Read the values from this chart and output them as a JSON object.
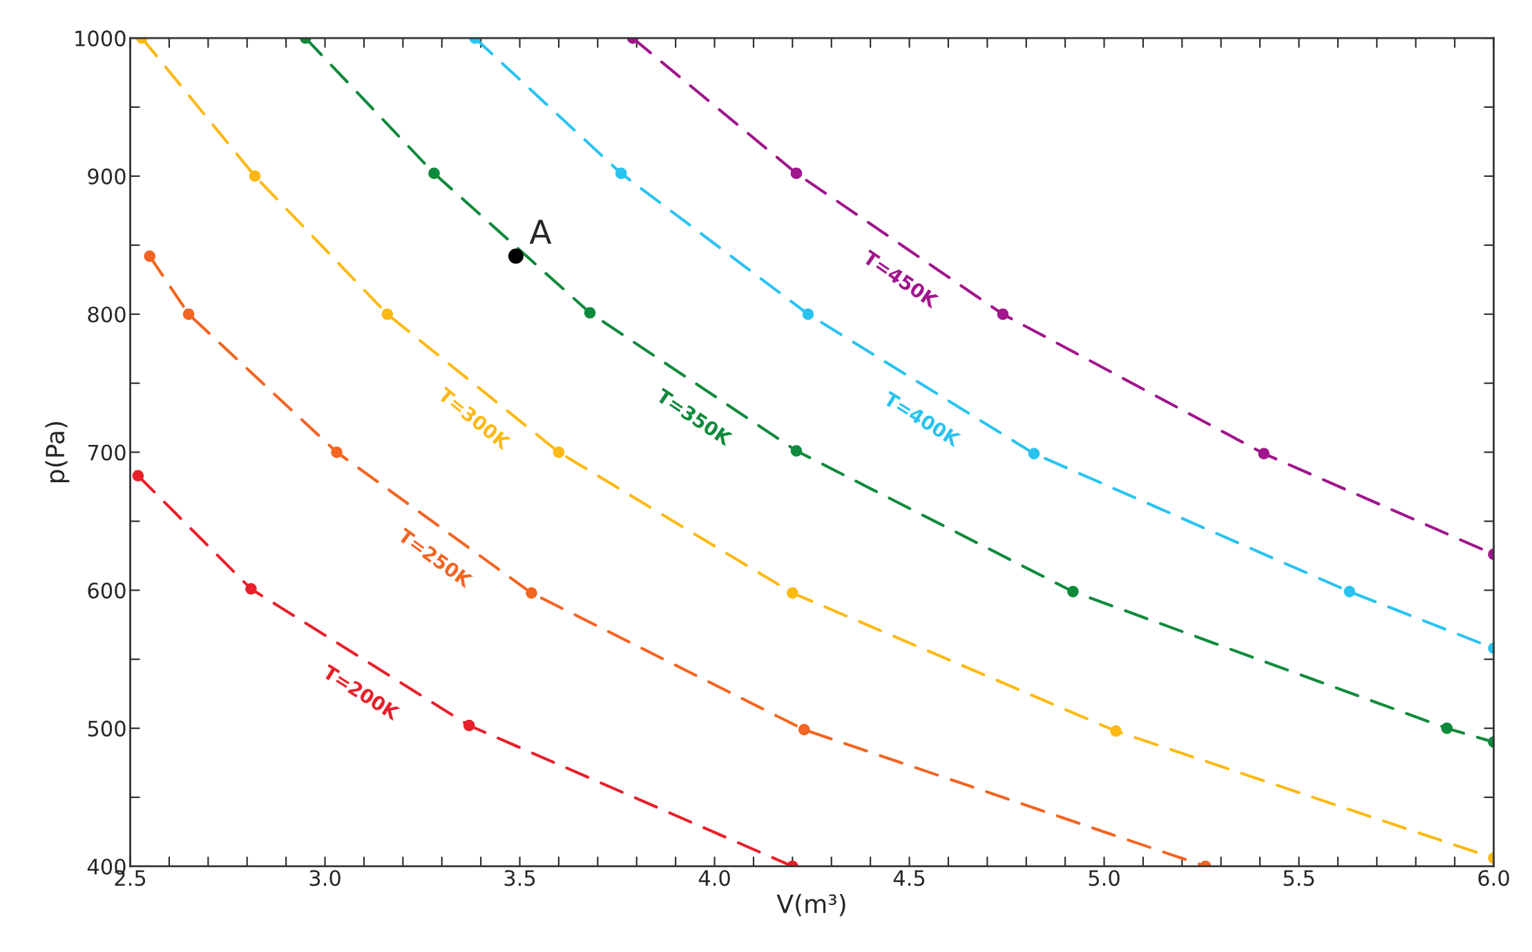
{
  "chart_data": {
    "type": "line",
    "xlabel": "V(m³)",
    "ylabel": "p(Pa)",
    "xlim": [
      2.5,
      6.0
    ],
    "ylim": [
      400,
      1000
    ],
    "xticks": [
      2.5,
      {
        "value": 2.6,
        "label": null
      },
      {
        "value": 2.7,
        "label": null
      },
      {
        "value": 2.8,
        "label": null
      },
      {
        "value": 2.9,
        "label": null
      },
      {
        "value": 3.0,
        "label": "3.0"
      },
      {
        "value": 3.1,
        "label": null
      },
      {
        "value": 3.2,
        "label": null
      },
      {
        "value": 3.3,
        "label": null
      },
      {
        "value": 3.4,
        "label": null
      },
      3.5,
      {
        "value": 3.6,
        "label": null
      },
      {
        "value": 3.7,
        "label": null
      },
      {
        "value": 3.8,
        "label": null
      },
      {
        "value": 3.9,
        "label": null
      },
      {
        "value": 4.0,
        "label": "4.0"
      },
      {
        "value": 4.1,
        "label": null
      },
      {
        "value": 4.2,
        "label": null
      },
      {
        "value": 4.3,
        "label": null
      },
      {
        "value": 4.4,
        "label": null
      },
      4.5,
      {
        "value": 4.6,
        "label": null
      },
      {
        "value": 4.7,
        "label": null
      },
      {
        "value": 4.8,
        "label": null
      },
      {
        "value": 4.9,
        "label": null
      },
      {
        "value": 5.0,
        "label": "5.0"
      },
      {
        "value": 5.1,
        "label": null
      },
      {
        "value": 5.2,
        "label": null
      },
      {
        "value": 5.3,
        "label": null
      },
      {
        "value": 5.4,
        "label": null
      },
      5.5,
      {
        "value": 5.6,
        "label": null
      },
      {
        "value": 5.7,
        "label": null
      },
      {
        "value": 5.8,
        "label": null
      },
      {
        "value": 5.9,
        "label": null
      },
      {
        "value": 6.0,
        "label": "6.0"
      }
    ],
    "yticks": [
      400,
      {
        "value": 450,
        "label": null
      },
      500,
      {
        "value": 550,
        "label": null
      },
      600,
      {
        "value": 650,
        "label": null
      },
      700,
      {
        "value": 750,
        "label": null
      },
      800,
      {
        "value": 850,
        "label": null
      },
      900,
      {
        "value": 950,
        "label": null
      },
      1000
    ],
    "grid": false,
    "legend": false,
    "marker": "circle",
    "line_style": "dashed",
    "series": [
      {
        "name": "T=200K",
        "color": "#e8202a",
        "x": [
          2.52,
          2.81,
          3.37,
          4.2
        ],
        "values": [
          683,
          601,
          502,
          400
        ]
      },
      {
        "name": "T=250K",
        "color": "#f26522",
        "x": [
          2.55,
          2.65,
          3.03,
          3.53,
          4.23,
          5.26
        ],
        "values": [
          842,
          800,
          700,
          598,
          499,
          400
        ]
      },
      {
        "name": "T=300K",
        "color": "#fdb913",
        "x": [
          2.53,
          2.82,
          3.16,
          3.6,
          4.2,
          5.03,
          6.0
        ],
        "values": [
          1000,
          900,
          800,
          700,
          598,
          498,
          406
        ]
      },
      {
        "name": "T=350K",
        "color": "#0f8a3c",
        "x": [
          2.95,
          3.28,
          3.68,
          4.21,
          4.92,
          5.88,
          6.0
        ],
        "values": [
          1000,
          902,
          801,
          701,
          599,
          500,
          490
        ]
      },
      {
        "name": "T=400K",
        "color": "#29c3f0",
        "x": [
          3.385,
          3.76,
          4.24,
          4.82,
          5.63,
          6.0
        ],
        "values": [
          1000,
          902,
          800,
          699,
          599,
          558
        ]
      },
      {
        "name": "T=450K",
        "color": "#a0168c",
        "x": [
          3.79,
          4.21,
          4.74,
          5.41,
          6.0
        ],
        "values": [
          1000,
          902,
          800,
          699,
          626
        ]
      },
      {
        "type": "scatter",
        "color": "#000000",
        "x": [
          3.49
        ],
        "values": [
          842
        ]
      }
    ],
    "annotations": [
      {
        "text": "A",
        "x": 3.49,
        "y": 842
      }
    ]
  }
}
